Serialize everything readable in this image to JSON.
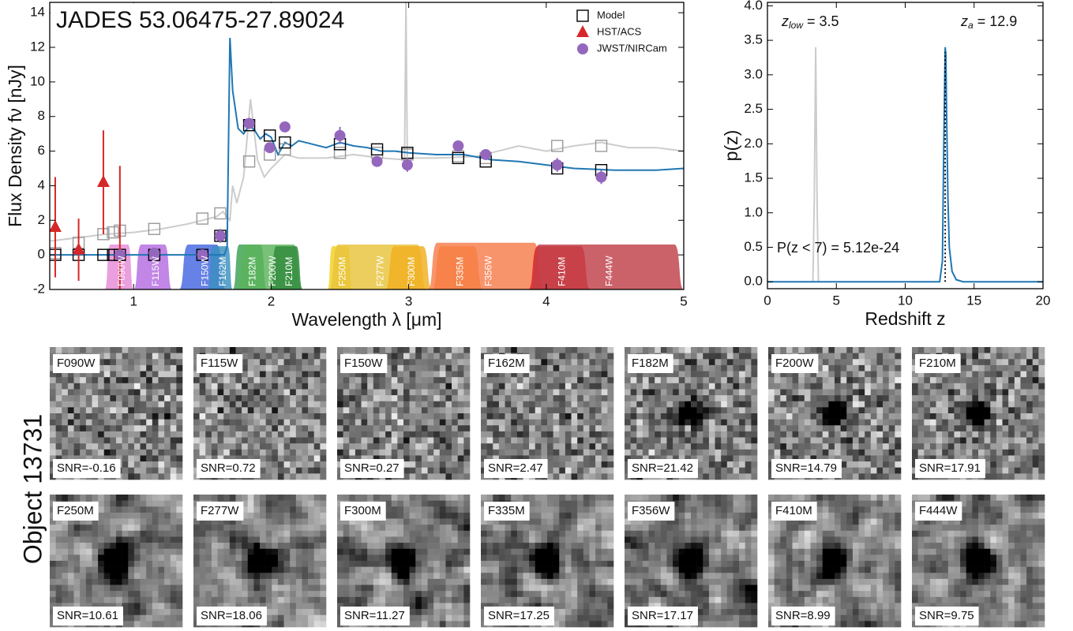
{
  "chart_data": [
    {
      "type": "scatter",
      "title": "JADES 53.06475-27.89024",
      "xlabel": "Wavelength λ [μm]",
      "ylabel": "Flux Density fν [nJy]",
      "xlim": [
        0.39,
        5
      ],
      "ylim": [
        -2,
        14.6
      ],
      "xticks": [
        1,
        2,
        3,
        4,
        5
      ],
      "yticks": [
        -2,
        0,
        2,
        4,
        6,
        8,
        10,
        12,
        14
      ],
      "legend": "upper right",
      "filters": [
        {
          "name": "F090W",
          "range": [
            0.79,
            1.0
          ],
          "peak": 0.6,
          "color": "#e58ad8"
        },
        {
          "name": "F115W",
          "range": [
            1.0,
            1.28
          ],
          "peak": 0.6,
          "color": "#b36be0"
        },
        {
          "name": "F150W",
          "range": [
            1.33,
            1.67
          ],
          "peak": 0.6,
          "color": "#4466e0"
        },
        {
          "name": "F162M",
          "range": [
            1.54,
            1.72
          ],
          "peak": 0.5,
          "color": "#3a8fc0"
        },
        {
          "name": "F182M",
          "range": [
            1.72,
            1.97
          ],
          "peak": 0.6,
          "color": "#3aa050"
        },
        {
          "name": "F200W",
          "range": [
            1.75,
            2.23
          ],
          "peak": 0.6,
          "color": "#5bb35b"
        },
        {
          "name": "F210M",
          "range": [
            1.99,
            2.23
          ],
          "peak": 0.5,
          "color": "#2f8a3a"
        },
        {
          "name": "F250M",
          "range": [
            2.41,
            2.59
          ],
          "peak": 0.5,
          "color": "#f2d020"
        },
        {
          "name": "F277W",
          "range": [
            2.42,
            3.13
          ],
          "peak": 0.6,
          "color": "#e8c33a"
        },
        {
          "name": "F300M",
          "range": [
            2.83,
            3.17
          ],
          "peak": 0.5,
          "color": "#f0b020"
        },
        {
          "name": "F335M",
          "range": [
            3.17,
            3.54
          ],
          "peak": 0.5,
          "color": "#f58a20"
        },
        {
          "name": "F356W",
          "range": [
            3.14,
            3.98
          ],
          "peak": 0.7,
          "color": "#f77c4c"
        },
        {
          "name": "F410M",
          "range": [
            3.87,
            4.32
          ],
          "peak": 0.5,
          "color": "#e82020"
        },
        {
          "name": "F444W",
          "range": [
            3.88,
            5.0
          ],
          "peak": 0.6,
          "color": "#c04048"
        }
      ],
      "series": [
        {
          "mode": "line",
          "color": "#cccccc",
          "x": [
            0.39,
            0.6,
            0.8,
            1.0,
            1.2,
            1.4,
            1.6,
            1.65,
            1.7,
            1.72,
            1.75,
            1.8,
            1.85,
            1.9,
            1.95,
            2.0,
            2.1,
            2.2,
            2.4,
            2.6,
            2.8,
            2.97,
            2.98,
            2.99,
            3.2,
            3.5,
            3.8,
            4.0,
            4.2,
            4.4,
            4.6,
            4.8,
            5.0
          ],
          "values": [
            0.8,
            1.0,
            1.2,
            1.3,
            1.5,
            1.8,
            2.2,
            2.5,
            2.0,
            4.0,
            3.0,
            4.5,
            9.0,
            5.5,
            4.5,
            5.0,
            5.8,
            5.6,
            5.6,
            5.8,
            5.6,
            5.5,
            14.6,
            5.6,
            5.6,
            5.7,
            6.3,
            6.0,
            6.3,
            6.5,
            6.2,
            6.2,
            6.0
          ]
        },
        {
          "mode": "line",
          "color": "#1f77b4",
          "x": [
            0.39,
            1.0,
            1.5,
            1.66,
            1.68,
            1.7,
            1.72,
            1.76,
            1.8,
            1.84,
            1.88,
            1.92,
            1.96,
            2.0,
            2.05,
            2.1,
            2.15,
            2.2,
            2.3,
            2.4,
            2.5,
            2.6,
            2.7,
            2.8,
            2.9,
            3.0,
            3.2,
            3.4,
            3.6,
            3.8,
            4.0,
            4.2,
            4.5,
            4.8,
            5.0
          ],
          "values": [
            0,
            0,
            0,
            0,
            0.5,
            12.6,
            9.5,
            7.3,
            7.0,
            7.5,
            7.2,
            6.7,
            7.0,
            6.8,
            5.8,
            6.5,
            6.3,
            6.6,
            6.4,
            6.2,
            6.5,
            6.3,
            6.2,
            6.0,
            6.0,
            5.9,
            5.8,
            5.8,
            5.5,
            5.4,
            5.2,
            5.0,
            4.9,
            4.9,
            5.0
          ]
        },
        {
          "mode": "markers",
          "marker": "square",
          "color": "#999999",
          "x": [
            0.43,
            0.6,
            0.78,
            0.85,
            0.9,
            1.15,
            1.5,
            1.63,
            1.84,
            1.99,
            2.1,
            2.5,
            2.77,
            2.99,
            3.36,
            3.56,
            4.08,
            4.4
          ],
          "values": [
            0.1,
            0.7,
            1.2,
            1.3,
            1.4,
            1.5,
            2.1,
            2.4,
            5.4,
            5.8,
            6.1,
            5.9,
            5.9,
            5.8,
            5.7,
            5.6,
            6.3,
            6.3
          ]
        },
        {
          "name": "Model",
          "mode": "markers",
          "marker": "square",
          "color": "#000000",
          "x": [
            0.43,
            0.6,
            0.78,
            0.85,
            0.9,
            1.15,
            1.5,
            1.63,
            1.84,
            1.99,
            2.1,
            2.5,
            2.77,
            2.99,
            3.36,
            3.56,
            4.08,
            4.4
          ],
          "values": [
            0,
            0,
            0,
            0,
            0,
            0,
            0,
            1.1,
            7.5,
            6.9,
            6.5,
            6.4,
            6.1,
            5.9,
            5.6,
            5.4,
            5.0,
            4.9
          ]
        },
        {
          "name": "HST/ACS",
          "mode": "markers",
          "marker": "triangle",
          "color": "#d62728",
          "x": [
            0.43,
            0.6,
            0.78,
            0.9
          ],
          "values": [
            1.6,
            0.3,
            4.2,
            0.05
          ],
          "errors": [
            2.9,
            1.8,
            3.0,
            5.1
          ]
        },
        {
          "name": "JWST/NIRCam",
          "mode": "markers",
          "marker": "circle",
          "color": "#9467bd",
          "x": [
            0.9,
            1.15,
            1.5,
            1.63,
            1.84,
            1.99,
            2.1,
            2.5,
            2.77,
            2.99,
            3.36,
            3.56,
            4.08,
            4.4
          ],
          "values": [
            0,
            0.1,
            0,
            1.1,
            7.6,
            6.2,
            7.4,
            6.9,
            5.4,
            5.2,
            6.3,
            5.8,
            5.2,
            4.5
          ],
          "errors": [
            0.3,
            0.3,
            0.2,
            0.4,
            0.3,
            0.3,
            0.3,
            0.5,
            0.3,
            0.4,
            0.2,
            0.3,
            0.4,
            0.4
          ]
        }
      ]
    },
    {
      "type": "line",
      "xlabel": "Redshift z",
      "ylabel": "p(z)",
      "xlim": [
        0,
        20
      ],
      "ylim": [
        -0.1,
        4.05
      ],
      "xticks": [
        0,
        5,
        10,
        15,
        20
      ],
      "yticks": [
        {
          "value": 0,
          "label": "0.0"
        },
        {
          "value": 0.5,
          "label": "0.5"
        },
        {
          "value": 1,
          "label": "1.0"
        },
        {
          "value": 1.5,
          "label": "1.5"
        },
        {
          "value": 2,
          "label": "2.0"
        },
        {
          "value": 2.5,
          "label": "2.5"
        },
        {
          "value": 3,
          "label": "3.0"
        },
        {
          "value": 3.5,
          "label": "3.5"
        },
        {
          "value": 4,
          "label": "4.0"
        }
      ],
      "marker_x": 12.9,
      "annotations": [
        {
          "symbol": "z",
          "subscript": "low",
          "text": " = 3.5"
        },
        {
          "symbol": "z",
          "subscript": "a",
          "text": " = 12.9"
        },
        {
          "symbol": "P(z < 7)",
          "text": " = 5.12e-24"
        }
      ],
      "series": [
        {
          "mode": "line",
          "color": "#cccccc",
          "x": [
            3.3,
            3.4,
            3.5,
            3.6,
            3.7
          ],
          "values": [
            0,
            1.2,
            3.4,
            1.2,
            0
          ]
        },
        {
          "mode": "line",
          "color": "#1f77b4",
          "x": [
            0,
            12.5,
            12.7,
            12.8,
            12.9,
            12.95,
            13.0,
            13.1,
            13.2,
            13.4,
            13.7,
            14.2,
            20
          ],
          "values": [
            0,
            0,
            0.3,
            2.0,
            3.4,
            3.3,
            2.5,
            1.2,
            0.5,
            0.15,
            0.03,
            0,
            0
          ]
        }
      ]
    }
  ],
  "cutouts": {
    "object_label": "Object 13731",
    "panels": [
      {
        "filter": "F090W",
        "snr": "SNR=-0.16"
      },
      {
        "filter": "F115W",
        "snr": "SNR=0.72"
      },
      {
        "filter": "F150W",
        "snr": "SNR=0.27"
      },
      {
        "filter": "F162M",
        "snr": "SNR=2.47"
      },
      {
        "filter": "F182M",
        "snr": "SNR=21.42"
      },
      {
        "filter": "F200W",
        "snr": "SNR=14.79"
      },
      {
        "filter": "F210M",
        "snr": "SNR=17.91"
      },
      {
        "filter": "F250M",
        "snr": "SNR=10.61"
      },
      {
        "filter": "F277W",
        "snr": "SNR=18.06"
      },
      {
        "filter": "F300M",
        "snr": "SNR=11.27"
      },
      {
        "filter": "F335M",
        "snr": "SNR=17.25"
      },
      {
        "filter": "F356W",
        "snr": "SNR=17.17"
      },
      {
        "filter": "F410M",
        "snr": "SNR=8.99"
      },
      {
        "filter": "F444W",
        "snr": "SNR=9.75"
      }
    ]
  }
}
